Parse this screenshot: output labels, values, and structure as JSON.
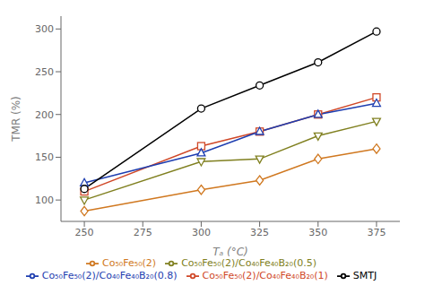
{
  "chart_data": {
    "type": "line",
    "x_label": "Tₐ (°C)",
    "y_label": "TMR (%)",
    "x": [
      250,
      300,
      325,
      350,
      375
    ],
    "series": [
      {
        "name": "Co₅₀Fe₅₀(2)/Co₄₀Fe₄₀B₂₀(1)",
        "color": "#d04828",
        "marker": "square",
        "values": [
          110,
          163,
          180,
          200,
          220
        ]
      },
      {
        "name": "Co₅₀Fe₅₀(2)/Co₄₀Fe₄₀B₂₀(0.8)",
        "color": "#1e3eb0",
        "marker": "triangle",
        "values": [
          120,
          155,
          180,
          200,
          213
        ]
      },
      {
        "name": "Co₅₀Fe₅₀(2)/Co₄₀Fe₄₀B₂₀(0.5)",
        "color": "#808020",
        "marker": "triangle-down",
        "values": [
          100,
          145,
          148,
          175,
          192
        ]
      },
      {
        "name": "Co₅₀Fe₅₀(2)",
        "color": "#d07820",
        "marker": "diamond",
        "values": [
          87,
          112,
          123,
          148,
          160
        ]
      },
      {
        "name": "SMTJ",
        "color": "#000000",
        "marker": "circle",
        "values": [
          113,
          207,
          234,
          261,
          297
        ]
      }
    ],
    "xlim": [
      240,
      385
    ],
    "ylim": [
      75,
      315
    ],
    "xticks": [
      250,
      275,
      300,
      325,
      350,
      375
    ],
    "yticks": [
      100,
      150,
      200,
      250,
      300
    ],
    "grid": false,
    "legend": "bottom"
  }
}
